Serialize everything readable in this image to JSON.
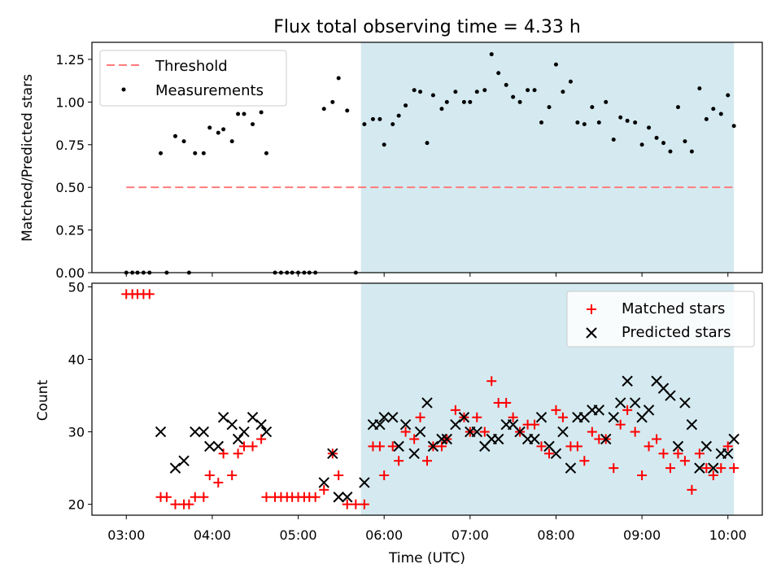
{
  "figure": {
    "title": "Flux total observing time = 4.33 h",
    "xlabel": "Time (UTC)",
    "x_tick_labels": [
      "03:00",
      "04:00",
      "05:00",
      "06:00",
      "07:00",
      "08:00",
      "09:00",
      "10:00"
    ]
  },
  "colors": {
    "shade": "#d4eaf0",
    "threshold": "#ff7b7b",
    "measurements": "#000000",
    "matched": "#ff0000",
    "predicted": "#000000"
  },
  "chart_data": [
    {
      "type": "scatter",
      "title": "Flux total observing time = 4.33 h",
      "xlabel": "Time (UTC)",
      "ylabel": "Matched/Predicted stars",
      "xlim": [
        2.6,
        10.4
      ],
      "ylim": [
        0,
        1.35
      ],
      "y_ticks": [
        "0.00",
        "0.25",
        "0.50",
        "0.75",
        "1.00",
        "1.25"
      ],
      "legend_position": "top-left",
      "legend": [
        "Threshold",
        "Measurements"
      ],
      "shaded_region": [
        5.73,
        10.07
      ],
      "threshold": {
        "name": "Threshold",
        "y": 0.5,
        "x": [
          3.0,
          10.07
        ]
      },
      "series": [
        {
          "name": "Measurements",
          "points": [
            [
              3.0,
              0
            ],
            [
              3.07,
              0
            ],
            [
              3.13,
              0
            ],
            [
              3.2,
              0
            ],
            [
              3.27,
              0
            ],
            [
              3.4,
              0.7
            ],
            [
              3.47,
              0
            ],
            [
              3.57,
              0.8
            ],
            [
              3.67,
              0.77
            ],
            [
              3.73,
              0
            ],
            [
              3.8,
              0.7
            ],
            [
              3.9,
              0.7
            ],
            [
              3.97,
              0.85
            ],
            [
              4.07,
              0.82
            ],
            [
              4.13,
              0.84
            ],
            [
              4.23,
              0.77
            ],
            [
              4.3,
              0.93
            ],
            [
              4.37,
              0.93
            ],
            [
              4.47,
              0.87
            ],
            [
              4.57,
              0.94
            ],
            [
              4.63,
              0.7
            ],
            [
              4.73,
              0
            ],
            [
              4.8,
              0
            ],
            [
              4.87,
              0
            ],
            [
              4.93,
              0
            ],
            [
              5.0,
              0
            ],
            [
              5.07,
              0
            ],
            [
              5.13,
              0
            ],
            [
              5.2,
              0
            ],
            [
              5.3,
              0.96
            ],
            [
              5.4,
              1.0
            ],
            [
              5.47,
              1.14
            ],
            [
              5.57,
              0.95
            ],
            [
              5.67,
              0
            ],
            [
              5.77,
              0.87
            ],
            [
              5.87,
              0.9
            ],
            [
              5.95,
              0.9
            ],
            [
              6.0,
              0.75
            ],
            [
              6.1,
              0.87
            ],
            [
              6.17,
              0.92
            ],
            [
              6.25,
              0.98
            ],
            [
              6.35,
              1.07
            ],
            [
              6.42,
              1.06
            ],
            [
              6.5,
              0.76
            ],
            [
              6.57,
              1.04
            ],
            [
              6.67,
              0.96
            ],
            [
              6.73,
              1.0
            ],
            [
              6.83,
              1.06
            ],
            [
              6.93,
              1.0
            ],
            [
              7.0,
              1.0
            ],
            [
              7.08,
              1.06
            ],
            [
              7.17,
              1.07
            ],
            [
              7.25,
              1.28
            ],
            [
              7.33,
              1.17
            ],
            [
              7.42,
              1.1
            ],
            [
              7.5,
              1.03
            ],
            [
              7.58,
              1.0
            ],
            [
              7.67,
              1.07
            ],
            [
              7.75,
              1.07
            ],
            [
              7.83,
              0.88
            ],
            [
              7.92,
              0.97
            ],
            [
              8.0,
              1.22
            ],
            [
              8.08,
              1.06
            ],
            [
              8.17,
              1.12
            ],
            [
              8.25,
              0.88
            ],
            [
              8.33,
              0.87
            ],
            [
              8.42,
              0.97
            ],
            [
              8.5,
              0.88
            ],
            [
              8.58,
              1.0
            ],
            [
              8.67,
              0.78
            ],
            [
              8.75,
              0.91
            ],
            [
              8.83,
              0.89
            ],
            [
              8.92,
              0.88
            ],
            [
              9.0,
              0.75
            ],
            [
              9.08,
              0.85
            ],
            [
              9.17,
              0.79
            ],
            [
              9.25,
              0.76
            ],
            [
              9.33,
              0.71
            ],
            [
              9.42,
              0.97
            ],
            [
              9.5,
              0.77
            ],
            [
              9.58,
              0.71
            ],
            [
              9.67,
              1.08
            ],
            [
              9.75,
              0.9
            ],
            [
              9.83,
              0.96
            ],
            [
              9.92,
              0.93
            ],
            [
              10.0,
              1.04
            ],
            [
              10.07,
              0.86
            ]
          ]
        }
      ]
    },
    {
      "type": "scatter",
      "xlabel": "Time (UTC)",
      "ylabel": "Count",
      "xlim": [
        2.6,
        10.4
      ],
      "ylim": [
        18.5,
        50.5
      ],
      "y_ticks": [
        "20",
        "30",
        "40",
        "50"
      ],
      "legend_position": "top-right",
      "legend": [
        "Matched stars",
        "Predicted stars"
      ],
      "shaded_region": [
        5.73,
        10.07
      ],
      "series": [
        {
          "name": "Matched stars",
          "marker": "+",
          "points": [
            [
              3.0,
              49
            ],
            [
              3.07,
              49
            ],
            [
              3.13,
              49
            ],
            [
              3.2,
              49
            ],
            [
              3.27,
              49
            ],
            [
              3.4,
              21
            ],
            [
              3.47,
              21
            ],
            [
              3.57,
              20
            ],
            [
              3.67,
              20
            ],
            [
              3.73,
              20
            ],
            [
              3.8,
              21
            ],
            [
              3.9,
              21
            ],
            [
              3.97,
              24
            ],
            [
              4.07,
              23
            ],
            [
              4.13,
              27
            ],
            [
              4.23,
              24
            ],
            [
              4.3,
              27
            ],
            [
              4.37,
              28
            ],
            [
              4.47,
              28
            ],
            [
              4.57,
              29
            ],
            [
              4.63,
              21
            ],
            [
              4.73,
              21
            ],
            [
              4.8,
              21
            ],
            [
              4.87,
              21
            ],
            [
              4.93,
              21
            ],
            [
              5.0,
              21
            ],
            [
              5.07,
              21
            ],
            [
              5.13,
              21
            ],
            [
              5.2,
              21
            ],
            [
              5.3,
              22
            ],
            [
              5.4,
              27
            ],
            [
              5.47,
              24
            ],
            [
              5.57,
              20
            ],
            [
              5.67,
              20
            ],
            [
              5.77,
              20
            ],
            [
              5.87,
              28
            ],
            [
              5.95,
              28
            ],
            [
              6.0,
              24
            ],
            [
              6.1,
              28
            ],
            [
              6.17,
              26
            ],
            [
              6.25,
              30
            ],
            [
              6.35,
              29
            ],
            [
              6.42,
              32
            ],
            [
              6.5,
              26
            ],
            [
              6.57,
              28
            ],
            [
              6.67,
              28
            ],
            [
              6.73,
              29
            ],
            [
              6.83,
              33
            ],
            [
              6.93,
              32
            ],
            [
              7.0,
              30
            ],
            [
              7.08,
              32
            ],
            [
              7.17,
              30
            ],
            [
              7.25,
              37
            ],
            [
              7.33,
              34
            ],
            [
              7.42,
              34
            ],
            [
              7.5,
              32
            ],
            [
              7.58,
              30
            ],
            [
              7.67,
              31
            ],
            [
              7.75,
              31
            ],
            [
              7.83,
              28
            ],
            [
              7.92,
              27
            ],
            [
              8.0,
              33
            ],
            [
              8.08,
              32
            ],
            [
              8.17,
              28
            ],
            [
              8.25,
              28
            ],
            [
              8.33,
              26
            ],
            [
              8.42,
              30
            ],
            [
              8.5,
              29
            ],
            [
              8.58,
              29
            ],
            [
              8.67,
              25
            ],
            [
              8.75,
              31
            ],
            [
              8.83,
              33
            ],
            [
              8.92,
              30
            ],
            [
              9.0,
              24
            ],
            [
              9.08,
              28
            ],
            [
              9.17,
              29
            ],
            [
              9.25,
              27
            ],
            [
              9.33,
              25
            ],
            [
              9.42,
              27
            ],
            [
              9.5,
              26
            ],
            [
              9.58,
              22
            ],
            [
              9.67,
              27
            ],
            [
              9.75,
              25
            ],
            [
              9.83,
              24
            ],
            [
              9.92,
              25
            ],
            [
              10.0,
              28
            ],
            [
              10.07,
              25
            ]
          ]
        },
        {
          "name": "Predicted stars",
          "marker": "x",
          "points": [
            [
              3.4,
              30
            ],
            [
              3.57,
              25
            ],
            [
              3.67,
              26
            ],
            [
              3.8,
              30
            ],
            [
              3.9,
              30
            ],
            [
              3.97,
              28
            ],
            [
              4.07,
              28
            ],
            [
              4.13,
              32
            ],
            [
              4.23,
              31
            ],
            [
              4.3,
              29
            ],
            [
              4.37,
              30
            ],
            [
              4.47,
              32
            ],
            [
              4.57,
              31
            ],
            [
              4.63,
              30
            ],
            [
              5.3,
              23
            ],
            [
              5.4,
              27
            ],
            [
              5.47,
              21
            ],
            [
              5.57,
              21
            ],
            [
              5.77,
              23
            ],
            [
              5.87,
              31
            ],
            [
              5.95,
              31
            ],
            [
              6.0,
              32
            ],
            [
              6.1,
              32
            ],
            [
              6.17,
              28
            ],
            [
              6.25,
              31
            ],
            [
              6.35,
              27
            ],
            [
              6.42,
              30
            ],
            [
              6.5,
              34
            ],
            [
              6.57,
              28
            ],
            [
              6.67,
              29
            ],
            [
              6.73,
              29
            ],
            [
              6.83,
              31
            ],
            [
              6.93,
              32
            ],
            [
              7.0,
              30
            ],
            [
              7.08,
              30
            ],
            [
              7.17,
              28
            ],
            [
              7.25,
              29
            ],
            [
              7.33,
              29
            ],
            [
              7.42,
              31
            ],
            [
              7.5,
              31
            ],
            [
              7.58,
              30
            ],
            [
              7.67,
              29
            ],
            [
              7.75,
              29
            ],
            [
              7.83,
              32
            ],
            [
              7.92,
              28
            ],
            [
              8.0,
              27
            ],
            [
              8.08,
              30
            ],
            [
              8.17,
              25
            ],
            [
              8.25,
              32
            ],
            [
              8.33,
              32
            ],
            [
              8.42,
              33
            ],
            [
              8.5,
              33
            ],
            [
              8.58,
              29
            ],
            [
              8.67,
              32
            ],
            [
              8.75,
              34
            ],
            [
              8.83,
              37
            ],
            [
              8.92,
              34
            ],
            [
              9.0,
              32
            ],
            [
              9.08,
              33
            ],
            [
              9.17,
              37
            ],
            [
              9.25,
              36
            ],
            [
              9.33,
              35
            ],
            [
              9.42,
              28
            ],
            [
              9.5,
              34
            ],
            [
              9.58,
              31
            ],
            [
              9.67,
              25
            ],
            [
              9.75,
              28
            ],
            [
              9.83,
              25
            ],
            [
              9.92,
              27
            ],
            [
              10.0,
              27
            ],
            [
              10.07,
              29
            ]
          ]
        }
      ]
    }
  ]
}
